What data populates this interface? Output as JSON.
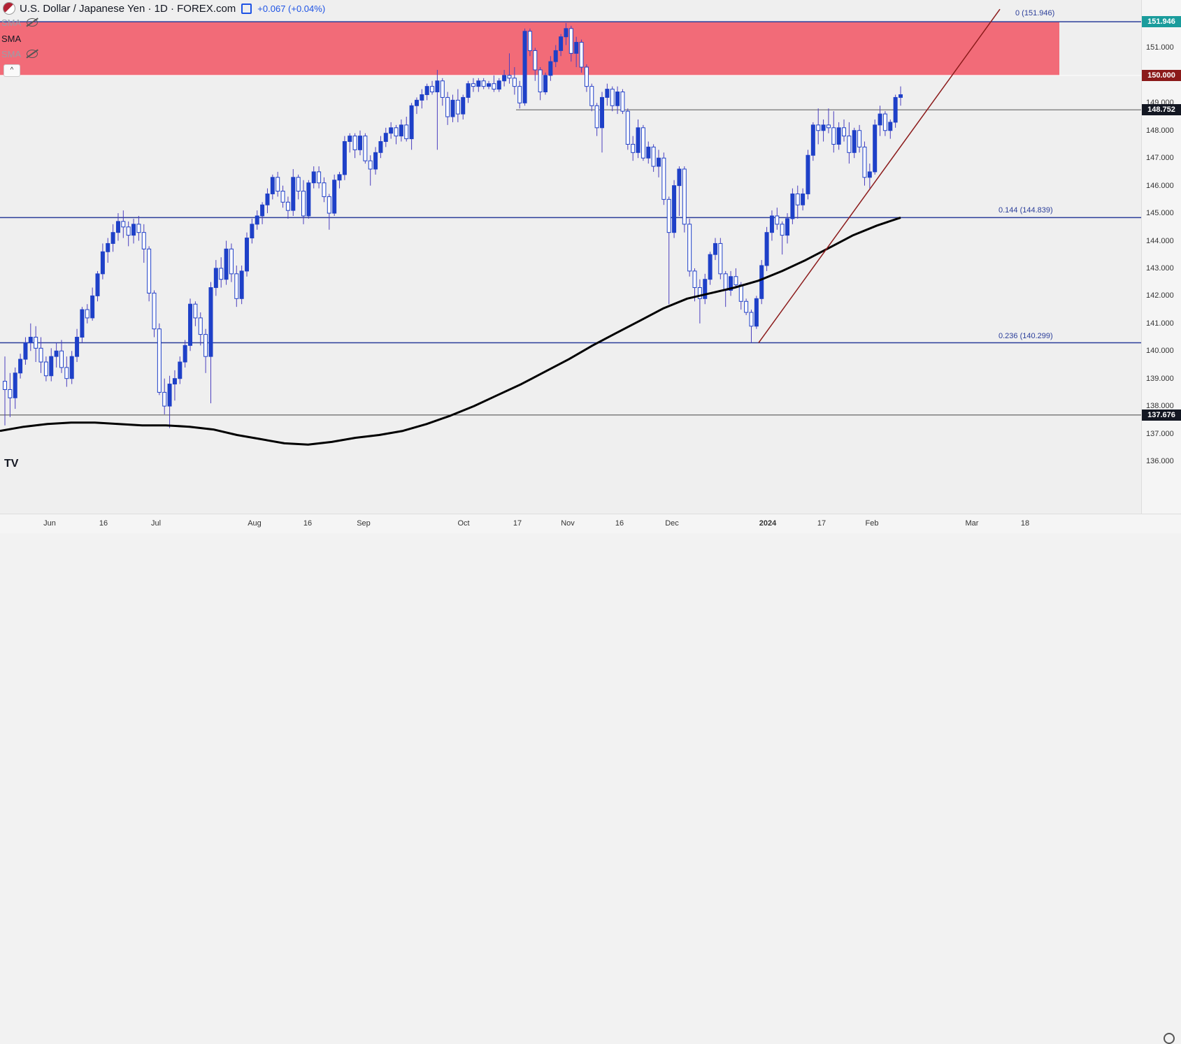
{
  "header": {
    "title": "U.S. Dollar / Japanese Yen · 1D · FOREX.com",
    "change": "+0.067 (+0.04%)"
  },
  "indicators": [
    {
      "label": "SMA",
      "visible": false
    },
    {
      "label": "SMA",
      "visible": true
    },
    {
      "label": "SMA",
      "visible": false
    }
  ],
  "price_axis": {
    "ticks": [
      "151.000",
      "149.000",
      "148.000",
      "147.000",
      "146.000",
      "145.000",
      "144.000",
      "143.000",
      "142.000",
      "141.000",
      "140.000",
      "139.000",
      "138.000",
      "137.000",
      "136.000"
    ],
    "tags": [
      {
        "label": "151.946",
        "value": 151.946,
        "bg": "#1a9c9c"
      },
      {
        "label": "150.000",
        "value": 150.0,
        "bg": "#8b1a1a"
      },
      {
        "label": "148.752",
        "value": 148.752,
        "bg": "#131722"
      },
      {
        "label": "137.676",
        "value": 137.676,
        "bg": "#131722"
      }
    ]
  },
  "time_axis": {
    "labels": [
      "Jun",
      "16",
      "Jul",
      "Aug",
      "16",
      "Sep",
      "Oct",
      "17",
      "Nov",
      "16",
      "Dec",
      "2024",
      "17",
      "Feb",
      "Mar",
      "18"
    ]
  },
  "fib_levels": [
    {
      "label": "0 (151.946)",
      "value": 151.946
    },
    {
      "label": "0.144 (144.839)",
      "value": 144.839
    },
    {
      "label": "0.236 (140.299)",
      "value": 140.299
    }
  ],
  "zones": {
    "resistance": {
      "from": 150.0,
      "to": 151.946,
      "color": "#f26b78"
    }
  },
  "colors": {
    "up": "#1e40c8",
    "down": "#ffffff",
    "wick": "#4b3fbf",
    "sma": "#000000",
    "trend": "#8b1a1a",
    "fib": "#2b3e9a"
  },
  "chart_data": {
    "type": "candlestick",
    "symbol": "USDJPY",
    "interval": "1D",
    "ylim": [
      135.8,
      152.4
    ],
    "ohlc": [
      [
        138.9,
        139.8,
        137.3,
        138.6
      ],
      [
        138.6,
        139.2,
        137.6,
        138.3
      ],
      [
        138.3,
        139.4,
        137.9,
        139.2
      ],
      [
        139.2,
        139.9,
        139.0,
        139.7
      ],
      [
        139.7,
        140.5,
        139.5,
        140.3
      ],
      [
        140.3,
        141.0,
        140.0,
        140.5
      ],
      [
        140.5,
        140.9,
        139.6,
        140.1
      ],
      [
        140.1,
        140.5,
        139.2,
        139.6
      ],
      [
        139.6,
        139.8,
        138.9,
        139.1
      ],
      [
        139.1,
        140.1,
        138.9,
        139.8
      ],
      [
        139.8,
        140.3,
        139.4,
        140.0
      ],
      [
        140.0,
        140.4,
        139.2,
        139.4
      ],
      [
        139.4,
        139.8,
        138.7,
        139.0
      ],
      [
        139.0,
        140.0,
        138.8,
        139.8
      ],
      [
        139.8,
        140.8,
        139.6,
        140.5
      ],
      [
        140.5,
        141.6,
        140.3,
        141.5
      ],
      [
        141.5,
        141.7,
        141.0,
        141.2
      ],
      [
        141.2,
        142.3,
        141.1,
        142.0
      ],
      [
        142.0,
        142.9,
        141.8,
        142.8
      ],
      [
        142.8,
        143.9,
        142.6,
        143.6
      ],
      [
        143.6,
        144.1,
        143.2,
        143.9
      ],
      [
        143.9,
        144.6,
        143.6,
        144.3
      ],
      [
        144.3,
        145.0,
        144.0,
        144.7
      ],
      [
        144.7,
        145.1,
        144.1,
        144.5
      ],
      [
        144.5,
        144.7,
        143.8,
        144.2
      ],
      [
        144.2,
        144.8,
        143.9,
        144.6
      ],
      [
        144.6,
        144.9,
        144.0,
        144.3
      ],
      [
        144.3,
        144.6,
        143.2,
        143.7
      ],
      [
        143.7,
        143.8,
        141.8,
        142.1
      ],
      [
        142.1,
        142.2,
        140.5,
        140.8
      ],
      [
        140.8,
        141.0,
        138.4,
        138.5
      ],
      [
        138.5,
        139.0,
        137.7,
        138.0
      ],
      [
        138.0,
        139.1,
        137.2,
        138.8
      ],
      [
        138.8,
        139.3,
        138.2,
        139.0
      ],
      [
        139.0,
        139.8,
        138.8,
        139.6
      ],
      [
        139.6,
        140.4,
        139.4,
        140.2
      ],
      [
        140.2,
        141.9,
        140.0,
        141.7
      ],
      [
        141.7,
        141.8,
        140.9,
        141.2
      ],
      [
        141.2,
        141.4,
        140.2,
        140.6
      ],
      [
        140.6,
        140.8,
        139.2,
        139.8
      ],
      [
        139.8,
        142.5,
        138.1,
        142.3
      ],
      [
        142.3,
        143.3,
        142.0,
        143.0
      ],
      [
        143.0,
        143.4,
        142.3,
        142.6
      ],
      [
        142.6,
        144.0,
        142.4,
        143.7
      ],
      [
        143.7,
        143.9,
        142.5,
        142.8
      ],
      [
        142.8,
        143.1,
        141.6,
        141.9
      ],
      [
        141.9,
        143.1,
        141.7,
        142.9
      ],
      [
        142.9,
        144.3,
        142.7,
        144.1
      ],
      [
        144.1,
        144.8,
        143.9,
        144.6
      ],
      [
        144.6,
        145.1,
        144.4,
        144.9
      ],
      [
        144.9,
        145.4,
        144.6,
        145.3
      ],
      [
        145.3,
        145.9,
        145.0,
        145.7
      ],
      [
        145.7,
        146.4,
        145.5,
        146.3
      ],
      [
        146.3,
        146.5,
        145.6,
        145.8
      ],
      [
        145.8,
        146.0,
        145.2,
        145.4
      ],
      [
        145.4,
        145.6,
        144.8,
        145.1
      ],
      [
        145.1,
        146.6,
        144.9,
        146.3
      ],
      [
        146.3,
        146.4,
        145.5,
        145.8
      ],
      [
        145.8,
        146.2,
        144.6,
        144.9
      ],
      [
        144.9,
        146.2,
        144.8,
        146.1
      ],
      [
        146.1,
        146.7,
        145.9,
        146.5
      ],
      [
        146.5,
        146.7,
        145.9,
        146.1
      ],
      [
        146.1,
        146.3,
        145.4,
        145.6
      ],
      [
        145.6,
        145.7,
        144.4,
        145.0
      ],
      [
        145.0,
        146.4,
        144.9,
        146.2
      ],
      [
        146.2,
        146.5,
        145.9,
        146.4
      ],
      [
        146.4,
        147.8,
        146.2,
        147.6
      ],
      [
        147.6,
        147.9,
        147.2,
        147.8
      ],
      [
        147.8,
        147.9,
        147.0,
        147.3
      ],
      [
        147.3,
        148.0,
        147.1,
        147.8
      ],
      [
        147.8,
        147.9,
        146.8,
        146.9
      ],
      [
        146.9,
        147.1,
        146.0,
        146.6
      ],
      [
        146.6,
        147.4,
        146.4,
        147.2
      ],
      [
        147.2,
        147.8,
        147.0,
        147.6
      ],
      [
        147.6,
        148.1,
        147.4,
        147.9
      ],
      [
        147.9,
        148.3,
        147.7,
        148.1
      ],
      [
        148.1,
        148.2,
        147.5,
        147.8
      ],
      [
        147.8,
        148.4,
        147.6,
        148.2
      ],
      [
        148.2,
        148.5,
        147.6,
        147.7
      ],
      [
        147.7,
        149.0,
        147.3,
        148.9
      ],
      [
        148.9,
        149.2,
        148.6,
        149.1
      ],
      [
        149.1,
        149.5,
        148.8,
        149.3
      ],
      [
        149.3,
        149.7,
        149.1,
        149.6
      ],
      [
        149.6,
        149.8,
        149.3,
        149.4
      ],
      [
        149.4,
        150.2,
        147.3,
        149.8
      ],
      [
        149.8,
        149.9,
        148.9,
        149.2
      ],
      [
        149.2,
        149.4,
        148.2,
        148.5
      ],
      [
        148.5,
        149.3,
        148.3,
        149.1
      ],
      [
        149.1,
        149.5,
        148.3,
        148.6
      ],
      [
        148.6,
        149.3,
        148.4,
        149.2
      ],
      [
        149.2,
        149.8,
        149.0,
        149.7
      ],
      [
        149.7,
        149.9,
        149.4,
        149.6
      ],
      [
        149.6,
        149.9,
        149.4,
        149.8
      ],
      [
        149.8,
        149.9,
        149.5,
        149.6
      ],
      [
        149.6,
        149.8,
        149.5,
        149.7
      ],
      [
        149.7,
        150.0,
        149.4,
        149.5
      ],
      [
        149.5,
        149.9,
        149.4,
        149.8
      ],
      [
        149.8,
        150.2,
        149.6,
        150.0
      ],
      [
        150.0,
        150.8,
        149.7,
        149.9
      ],
      [
        149.9,
        150.3,
        149.3,
        149.6
      ],
      [
        149.6,
        149.8,
        148.8,
        149.0
      ],
      [
        149.0,
        151.7,
        148.9,
        151.6
      ],
      [
        151.6,
        151.7,
        150.7,
        150.9
      ],
      [
        150.9,
        151.0,
        149.8,
        150.2
      ],
      [
        150.2,
        150.3,
        149.1,
        149.4
      ],
      [
        149.4,
        150.1,
        149.3,
        150.0
      ],
      [
        150.0,
        150.7,
        149.8,
        150.5
      ],
      [
        150.5,
        151.1,
        150.3,
        150.9
      ],
      [
        150.9,
        151.5,
        150.7,
        151.4
      ],
      [
        151.4,
        151.9,
        151.1,
        151.7
      ],
      [
        151.7,
        151.8,
        150.5,
        150.8
      ],
      [
        150.8,
        151.4,
        150.3,
        151.2
      ],
      [
        151.2,
        151.3,
        150.1,
        150.3
      ],
      [
        150.3,
        150.4,
        149.4,
        149.6
      ],
      [
        149.6,
        149.7,
        148.7,
        148.9
      ],
      [
        148.9,
        149.0,
        147.8,
        148.1
      ],
      [
        148.1,
        149.4,
        147.2,
        149.2
      ],
      [
        149.2,
        149.7,
        148.9,
        149.5
      ],
      [
        149.5,
        149.6,
        148.7,
        148.9
      ],
      [
        148.9,
        149.6,
        148.6,
        149.4
      ],
      [
        149.4,
        149.5,
        148.6,
        148.7
      ],
      [
        148.7,
        148.8,
        147.3,
        147.5
      ],
      [
        147.5,
        147.8,
        146.9,
        147.2
      ],
      [
        147.2,
        148.4,
        147.0,
        148.1
      ],
      [
        148.1,
        148.2,
        146.9,
        147.0
      ],
      [
        147.0,
        147.6,
        146.8,
        147.4
      ],
      [
        147.4,
        147.5,
        146.5,
        146.7
      ],
      [
        146.7,
        147.3,
        146.3,
        147.0
      ],
      [
        147.0,
        147.2,
        145.3,
        145.5
      ],
      [
        145.5,
        145.6,
        141.7,
        144.3
      ],
      [
        144.3,
        146.2,
        144.1,
        146.0
      ],
      [
        146.0,
        146.7,
        144.9,
        146.6
      ],
      [
        146.6,
        146.7,
        144.3,
        144.6
      ],
      [
        144.6,
        144.8,
        142.7,
        142.9
      ],
      [
        142.9,
        143.0,
        141.8,
        142.3
      ],
      [
        142.3,
        142.6,
        141.0,
        141.9
      ],
      [
        141.9,
        142.8,
        141.7,
        142.6
      ],
      [
        142.6,
        143.6,
        142.4,
        143.5
      ],
      [
        143.5,
        144.1,
        143.3,
        143.9
      ],
      [
        143.9,
        144.1,
        142.6,
        142.8
      ],
      [
        142.8,
        142.9,
        141.6,
        142.2
      ],
      [
        142.2,
        142.9,
        142.0,
        142.7
      ],
      [
        142.7,
        143.0,
        142.3,
        142.4
      ],
      [
        142.4,
        142.5,
        141.5,
        141.8
      ],
      [
        141.8,
        141.9,
        141.3,
        141.4
      ],
      [
        141.4,
        141.5,
        140.3,
        140.9
      ],
      [
        140.9,
        142.0,
        140.8,
        141.9
      ],
      [
        141.9,
        143.3,
        141.7,
        143.1
      ],
      [
        143.1,
        144.5,
        142.9,
        144.3
      ],
      [
        144.3,
        145.1,
        144.0,
        144.9
      ],
      [
        144.9,
        145.2,
        144.4,
        144.6
      ],
      [
        144.6,
        144.7,
        143.5,
        144.2
      ],
      [
        144.2,
        145.0,
        143.9,
        144.8
      ],
      [
        144.8,
        145.9,
        144.6,
        145.7
      ],
      [
        145.7,
        146.0,
        144.8,
        145.3
      ],
      [
        145.3,
        145.9,
        145.1,
        145.7
      ],
      [
        145.7,
        147.3,
        145.5,
        147.1
      ],
      [
        147.1,
        148.3,
        146.9,
        148.2
      ],
      [
        148.2,
        148.8,
        147.5,
        148.0
      ],
      [
        148.0,
        148.4,
        147.6,
        148.2
      ],
      [
        148.2,
        148.8,
        147.9,
        148.1
      ],
      [
        148.1,
        148.7,
        147.2,
        147.5
      ],
      [
        147.5,
        148.3,
        147.3,
        148.1
      ],
      [
        148.1,
        148.4,
        147.6,
        147.8
      ],
      [
        147.8,
        148.3,
        146.8,
        147.2
      ],
      [
        147.2,
        148.1,
        147.0,
        148.0
      ],
      [
        148.0,
        148.2,
        147.2,
        147.4
      ],
      [
        147.4,
        147.6,
        146.0,
        146.3
      ],
      [
        146.3,
        146.8,
        145.9,
        146.5
      ],
      [
        146.5,
        148.4,
        146.4,
        148.2
      ],
      [
        148.2,
        148.9,
        147.8,
        148.6
      ],
      [
        148.6,
        148.7,
        147.8,
        148.0
      ],
      [
        148.0,
        148.4,
        147.7,
        148.3
      ],
      [
        148.3,
        149.3,
        148.1,
        149.2
      ],
      [
        149.2,
        149.6,
        148.9,
        149.3
      ]
    ],
    "sma": [
      137.1,
      137.25,
      137.35,
      137.4,
      137.4,
      137.35,
      137.3,
      137.3,
      137.25,
      137.15,
      136.95,
      136.8,
      136.65,
      136.6,
      136.7,
      136.85,
      136.95,
      137.1,
      137.35,
      137.65,
      138.0,
      138.4,
      138.8,
      139.25,
      139.7,
      140.2,
      140.65,
      141.1,
      141.55,
      141.9,
      142.1,
      142.3,
      142.55,
      142.9,
      143.3,
      143.75,
      144.2,
      144.55,
      144.839
    ],
    "trendline": {
      "from": [
        1085,
        140.299
      ],
      "to": [
        1430,
        152.4
      ]
    },
    "hlines": [
      151.946,
      150.0,
      148.752,
      144.839,
      140.299,
      137.676
    ]
  }
}
